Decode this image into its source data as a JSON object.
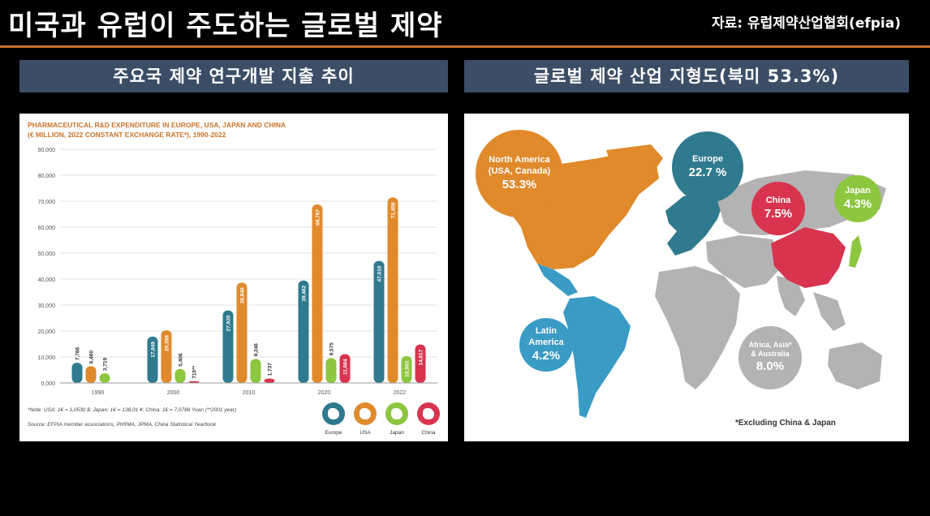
{
  "header": {
    "title": "미국과 유럽이 주도하는 글로벌 제약",
    "source": "자료: 유럽제약산업협회(efpia)"
  },
  "left_section": {
    "subtitle": "주요국 제약 연구개발 지출 추이",
    "chart_title_line1": "PHARMACEUTICAL R&D EXPENDITURE IN EUROPE, USA, JAPAN AND CHINA",
    "chart_title_line2": "(€ MILLION, 2022 CONSTANT EXCHANGE RATE*), 1990-2022",
    "note": "*Note: USA: 1€ = 1,0530 $; Japan: 1€ = 138,01 ¥; China: 1€ = 7,0788 Yuan (**2001 year)",
    "source": "Source: EFPIA member associations, PhRMA, JPMA, China Statistical Yearbook"
  },
  "right_section": {
    "subtitle": "글로벌 제약 산업 지형도(북미 53.3%)",
    "regions": [
      {
        "name": "North America",
        "sub": "(USA, Canada)",
        "pct": "53.3%",
        "color": "#e08a2c"
      },
      {
        "name": "Europe",
        "sub": "",
        "pct": "22.7 %",
        "color": "#2f7a8e"
      },
      {
        "name": "China",
        "sub": "",
        "pct": "7.5%",
        "color": "#d8344f"
      },
      {
        "name": "Japan",
        "sub": "",
        "pct": "4.3%",
        "color": "#8dc63f"
      },
      {
        "name": "Latin",
        "sub": "America",
        "pct": "4.2%",
        "color": "#3a9bc4"
      },
      {
        "name": "Africa, Asia*",
        "sub": "& Australia",
        "pct": "8.0%",
        "color": "#b3b3b3"
      }
    ],
    "footnote": "*Excluding China & Japan"
  },
  "chart_data": {
    "type": "bar",
    "categories": [
      "1990",
      "2000",
      "2010",
      "2020",
      "2022"
    ],
    "ylim": [
      0,
      90000
    ],
    "yticks": [
      "0,000",
      "10,000",
      "20,000",
      "30,000",
      "40,000",
      "50,000",
      "60,000",
      "70,000",
      "80,000",
      "90,000"
    ],
    "series": [
      {
        "name": "Europe",
        "color": "#2f7a8e",
        "values": [
          7766,
          17849,
          27920,
          39462,
          47010
        ],
        "labels": [
          "7,766",
          "17,849",
          "27,920",
          "39,462",
          "47,010"
        ]
      },
      {
        "name": "USA",
        "color": "#e08a2c",
        "values": [
          6460,
          20288,
          38640,
          68767,
          71458
        ],
        "labels": [
          "6,460",
          "20,288",
          "38,640",
          "68,767",
          "71,458"
        ]
      },
      {
        "name": "Japan",
        "color": "#8dc63f",
        "values": [
          3719,
          5406,
          9246,
          9575,
          10303
        ],
        "labels": [
          "3,719",
          "5,406",
          "9,246",
          "9,575",
          "10,303"
        ]
      },
      {
        "name": "China",
        "color": "#d8344f",
        "values": [
          null,
          715,
          1737,
          11084,
          14817
        ],
        "labels": [
          "",
          "715**",
          "1,737",
          "11,084",
          "14,817"
        ]
      }
    ]
  }
}
